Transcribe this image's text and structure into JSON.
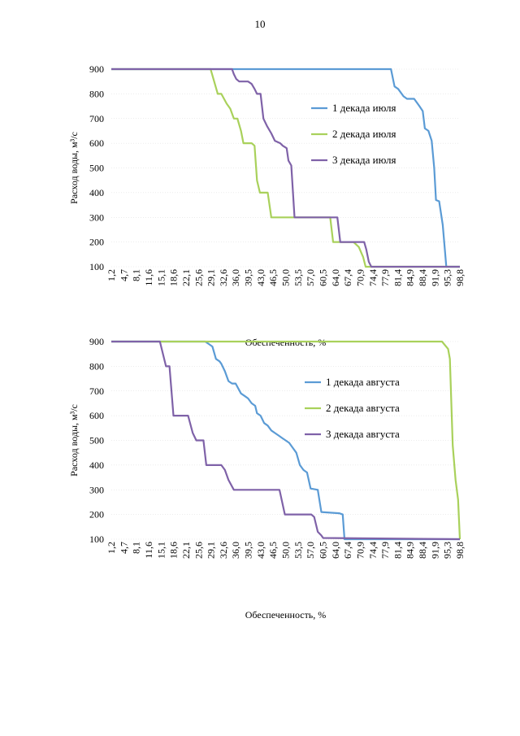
{
  "page": {
    "number": "10"
  },
  "chart_data": [
    {
      "type": "line",
      "title": "",
      "xlabel": "Обеспеченность, %",
      "ylabel": "Расход воды, м³/с",
      "ylim": [
        100,
        900
      ],
      "yticks": [
        "100",
        "200",
        "300",
        "400",
        "500",
        "600",
        "700",
        "800",
        "900"
      ],
      "xticks": [
        "1,2",
        "4,7",
        "8,1",
        "11,6",
        "15,1",
        "18,6",
        "22,1",
        "25,6",
        "29,1",
        "32,6",
        "36,0",
        "39,5",
        "43,0",
        "46,5",
        "50,0",
        "53,5",
        "57,0",
        "60,5",
        "64,0",
        "67,4",
        "70,9",
        "74,4",
        "77,9",
        "81,4",
        "84,9",
        "88,4",
        "91,9",
        "95,3",
        "98,8"
      ],
      "xlim": [
        1.2,
        98.8
      ],
      "grid": "horizontal dotted",
      "legend_position": "right",
      "series": [
        {
          "name": "1 декада июля",
          "color": "#5b9bd5",
          "points": [
            [
              1.2,
              900
            ],
            [
              79.5,
              900
            ],
            [
              80.5,
              830
            ],
            [
              81.5,
              820
            ],
            [
              83,
              790
            ],
            [
              84,
              780
            ],
            [
              86,
              780
            ],
            [
              87.5,
              750
            ],
            [
              88.4,
              730
            ],
            [
              89,
              660
            ],
            [
              90,
              650
            ],
            [
              90.9,
              610
            ],
            [
              91.6,
              500
            ],
            [
              92.1,
              370
            ],
            [
              93,
              365
            ],
            [
              94,
              270
            ],
            [
              95,
              100
            ],
            [
              98.8,
              100
            ]
          ]
        },
        {
          "name": "2 декада июля",
          "color": "#a9d15b",
          "points": [
            [
              1.2,
              900
            ],
            [
              29,
              900
            ],
            [
              30,
              850
            ],
            [
              31,
              800
            ],
            [
              32,
              800
            ],
            [
              33.5,
              760
            ],
            [
              34.5,
              740
            ],
            [
              35.5,
              700
            ],
            [
              36.5,
              700
            ],
            [
              37.5,
              650
            ],
            [
              38.2,
              600
            ],
            [
              40.5,
              600
            ],
            [
              41.3,
              590
            ],
            [
              42,
              450
            ],
            [
              42.8,
              400
            ],
            [
              45,
              400
            ],
            [
              46,
              300
            ],
            [
              62.5,
              300
            ],
            [
              63.3,
              200
            ],
            [
              69,
              200
            ],
            [
              70.5,
              180
            ],
            [
              71.7,
              140
            ],
            [
              72.4,
              100
            ],
            [
              98.8,
              100
            ]
          ]
        },
        {
          "name": "3 декада июля",
          "color": "#7f62a8",
          "points": [
            [
              1.2,
              900
            ],
            [
              35,
              900
            ],
            [
              35.5,
              880
            ],
            [
              36.2,
              860
            ],
            [
              37,
              850
            ],
            [
              39.5,
              850
            ],
            [
              40.5,
              840
            ],
            [
              41.3,
              820
            ],
            [
              42,
              800
            ],
            [
              43,
              800
            ],
            [
              43.8,
              700
            ],
            [
              44.8,
              670
            ],
            [
              46,
              640
            ],
            [
              47,
              610
            ],
            [
              48.5,
              600
            ],
            [
              49.2,
              590
            ],
            [
              50.3,
              580
            ],
            [
              50.8,
              530
            ],
            [
              51.6,
              510
            ],
            [
              52.5,
              300
            ],
            [
              64.5,
              300
            ],
            [
              65.3,
              200
            ],
            [
              72,
              200
            ],
            [
              72.6,
              170
            ],
            [
              73.3,
              120
            ],
            [
              74,
              100
            ],
            [
              98.8,
              100
            ]
          ]
        }
      ]
    },
    {
      "type": "line",
      "title": "",
      "xlabel": "Обеспеченность, %",
      "ylabel": "Расход воды, м³/с",
      "ylim": [
        100,
        900
      ],
      "yticks": [
        "100",
        "200",
        "300",
        "400",
        "500",
        "600",
        "700",
        "800",
        "900"
      ],
      "xticks": [
        "1,2",
        "4,7",
        "8,1",
        "11,6",
        "15,1",
        "18,6",
        "22,1",
        "25,6",
        "29,1",
        "32,6",
        "36,0",
        "39,5",
        "43,0",
        "46,5",
        "50,0",
        "53,5",
        "57,0",
        "60,5",
        "64,0",
        "67,4",
        "70,9",
        "74,4",
        "77,9",
        "81,4",
        "84,9",
        "88,4",
        "91,9",
        "95,3",
        "98,8"
      ],
      "xlim": [
        1.2,
        98.8
      ],
      "grid": "horizontal dotted",
      "legend_position": "right",
      "series": [
        {
          "name": "1 декада августа",
          "color": "#5b9bd5",
          "points": [
            [
              1.2,
              900
            ],
            [
              27.5,
              900
            ],
            [
              28.5,
              890
            ],
            [
              29.5,
              880
            ],
            [
              30.5,
              830
            ],
            [
              31.5,
              820
            ],
            [
              32,
              810
            ],
            [
              33,
              780
            ],
            [
              34,
              740
            ],
            [
              35,
              730
            ],
            [
              36,
              730
            ],
            [
              37.5,
              690
            ],
            [
              38.5,
              680
            ],
            [
              39.5,
              670
            ],
            [
              40.5,
              650
            ],
            [
              41.5,
              640
            ],
            [
              42,
              610
            ],
            [
              43,
              600
            ],
            [
              44,
              570
            ],
            [
              45,
              560
            ],
            [
              46,
              540
            ],
            [
              47,
              530
            ],
            [
              48,
              520
            ],
            [
              49,
              510
            ],
            [
              50,
              500
            ],
            [
              51,
              490
            ],
            [
              52,
              470
            ],
            [
              53,
              450
            ],
            [
              54,
              400
            ],
            [
              55,
              380
            ],
            [
              56,
              370
            ],
            [
              57,
              305
            ],
            [
              59,
              300
            ],
            [
              60,
              210
            ],
            [
              65,
              205
            ],
            [
              66,
              200
            ],
            [
              66.5,
              100
            ],
            [
              98.8,
              100
            ]
          ]
        },
        {
          "name": "2 декада августа",
          "color": "#a9d15b",
          "points": [
            [
              1.2,
              900
            ],
            [
              93.8,
              900
            ],
            [
              95.5,
              870
            ],
            [
              96,
              830
            ],
            [
              96.8,
              480
            ],
            [
              97.6,
              340
            ],
            [
              98.3,
              260
            ],
            [
              98.8,
              100
            ]
          ]
        },
        {
          "name": "3 декада августа",
          "color": "#7f62a8",
          "points": [
            [
              1.2,
              900
            ],
            [
              14.8,
              900
            ],
            [
              16.5,
              800
            ],
            [
              17.5,
              800
            ],
            [
              18.6,
              600
            ],
            [
              22.7,
              600
            ],
            [
              24,
              530
            ],
            [
              25,
              500
            ],
            [
              27,
              500
            ],
            [
              27.8,
              400
            ],
            [
              32,
              400
            ],
            [
              33,
              380
            ],
            [
              34,
              340
            ],
            [
              35.5,
              300
            ],
            [
              48.3,
              300
            ],
            [
              49.8,
              200
            ],
            [
              57.2,
              200
            ],
            [
              58,
              190
            ],
            [
              59,
              130
            ],
            [
              60,
              115
            ],
            [
              60.5,
              105
            ],
            [
              98.8,
              100
            ]
          ]
        }
      ]
    }
  ]
}
